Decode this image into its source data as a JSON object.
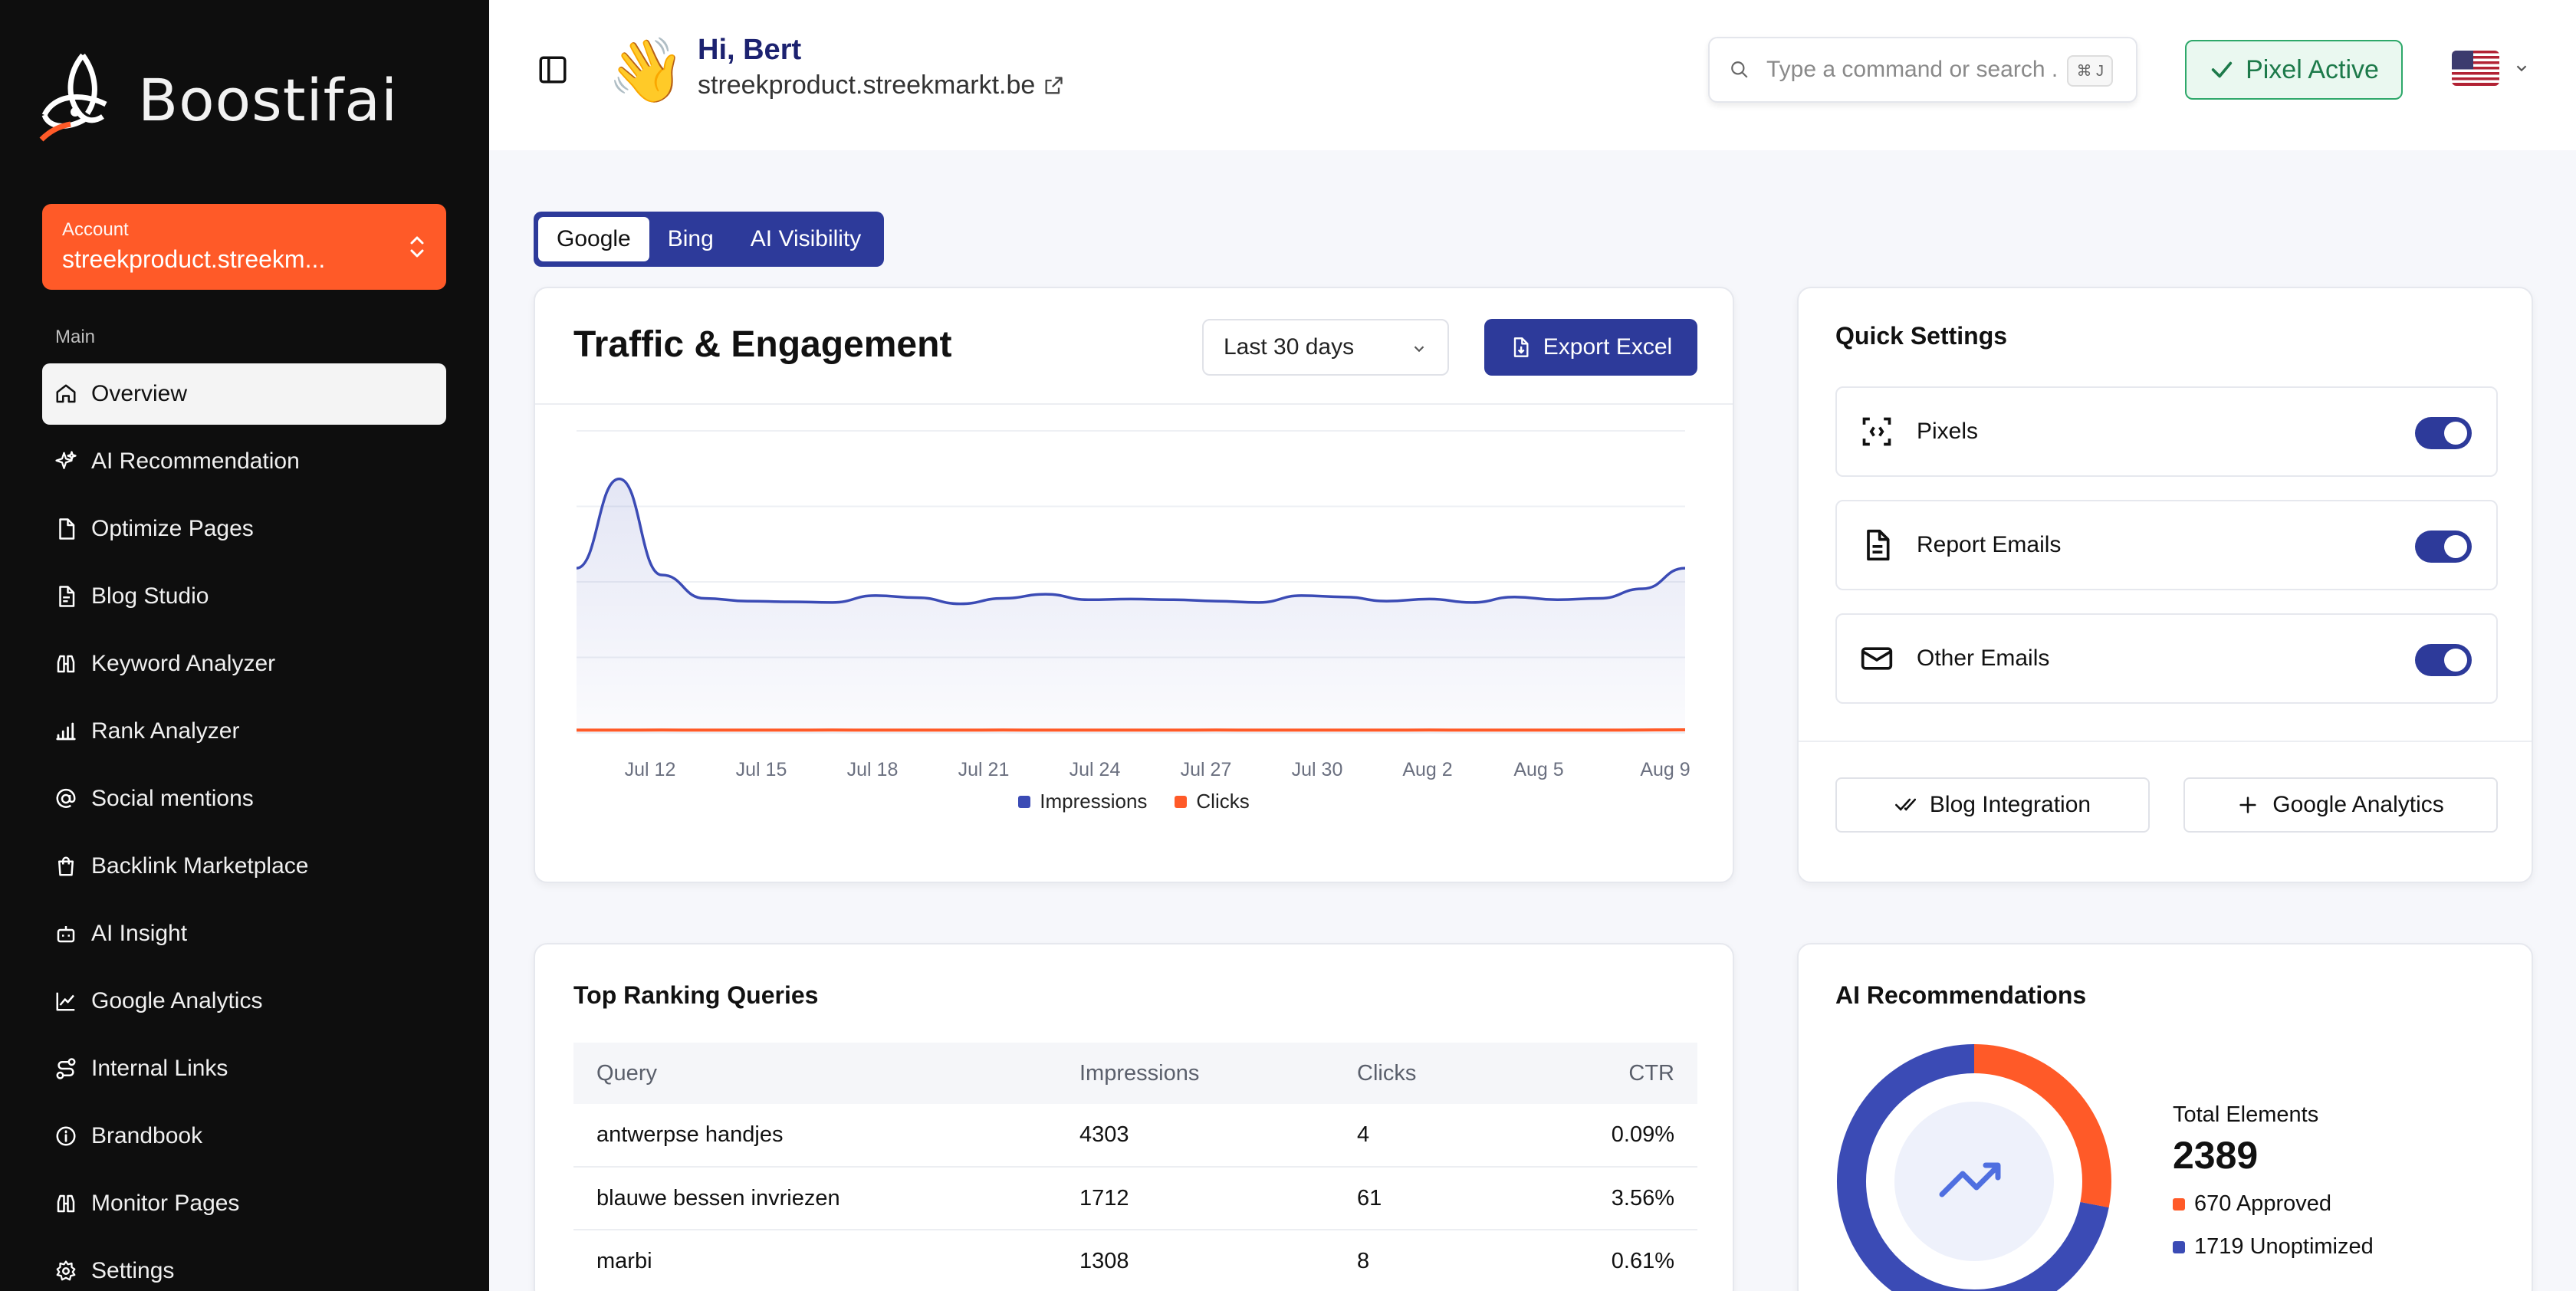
{
  "brand": {
    "name": "Boostifai"
  },
  "account": {
    "label": "Account",
    "value": "streekproduct.streekm..."
  },
  "sidebar": {
    "section": "Main",
    "items": [
      {
        "label": "Overview",
        "icon": "home-icon"
      },
      {
        "label": "AI Recommendation",
        "icon": "sparkles-icon"
      },
      {
        "label": "Optimize Pages",
        "icon": "file-icon"
      },
      {
        "label": "Blog Studio",
        "icon": "file-text-icon"
      },
      {
        "label": "Keyword Analyzer",
        "icon": "binoculars-icon"
      },
      {
        "label": "Rank Analyzer",
        "icon": "bar-chart-icon"
      },
      {
        "label": "Social mentions",
        "icon": "at-sign-icon"
      },
      {
        "label": "Backlink Marketplace",
        "icon": "shopping-bag-icon"
      },
      {
        "label": "AI Insight",
        "icon": "bot-icon"
      },
      {
        "label": "Google Analytics",
        "icon": "line-chart-icon"
      },
      {
        "label": "Internal Links",
        "icon": "route-icon"
      },
      {
        "label": "Brandbook",
        "icon": "info-icon"
      },
      {
        "label": "Monitor Pages",
        "icon": "binoculars-icon"
      },
      {
        "label": "Settings",
        "icon": "gear-icon"
      }
    ]
  },
  "header": {
    "greeting": "Hi, Bert",
    "site": "streekproduct.streekmarkt.be",
    "search_placeholder": "Type a command or search ...",
    "search_shortcut": "⌘ J",
    "pixel_status": "Pixel Active",
    "language": "en-US"
  },
  "tabs": [
    "Google",
    "Bing",
    "AI Visibility"
  ],
  "traffic": {
    "title": "Traffic & Engagement",
    "range": "Last 30 days",
    "export_label": "Export Excel"
  },
  "chart_data": {
    "type": "line",
    "x_ticks": [
      "Jul 12",
      "Jul 15",
      "Jul 18",
      "Jul 21",
      "Jul 24",
      "Jul 27",
      "Jul 30",
      "Aug 2",
      "Aug 5",
      "Aug 9"
    ],
    "series": [
      {
        "name": "Impressions",
        "color": "#3b4bb5",
        "values": [
          1200,
          1850,
          1150,
          980,
          960,
          955,
          950,
          1000,
          985,
          940,
          980,
          1010,
          970,
          975,
          970,
          960,
          950,
          1000,
          990,
          960,
          975,
          950,
          990,
          970,
          980,
          1050,
          1200
        ]
      },
      {
        "name": "Clicks",
        "color": "#ff5a28",
        "values": [
          20,
          20,
          21,
          20,
          20,
          20,
          21,
          20,
          20,
          20,
          21,
          20,
          20,
          20,
          20,
          21,
          20,
          20,
          20,
          20,
          21,
          20,
          20,
          20,
          20,
          21,
          22
        ]
      }
    ],
    "ylim": [
      0,
      2200
    ],
    "grid": true,
    "legend": "bottom"
  },
  "quick_settings": {
    "title": "Quick Settings",
    "rows": [
      {
        "label": "Pixels",
        "icon": "pixel-code-icon",
        "on": true
      },
      {
        "label": "Report Emails",
        "icon": "document-icon",
        "on": true
      },
      {
        "label": "Other Emails",
        "icon": "mail-icon",
        "on": true
      }
    ],
    "buttons": [
      {
        "label": "Blog Integration",
        "icon": "check-check-icon"
      },
      {
        "label": "Google Analytics",
        "icon": "plus-icon"
      }
    ]
  },
  "queries": {
    "title": "Top Ranking Queries",
    "columns": [
      "Query",
      "Impressions",
      "Clicks",
      "CTR"
    ],
    "rows": [
      [
        "antwerpse handjes",
        "4303",
        "4",
        "0.09%"
      ],
      [
        "blauwe bessen invriezen",
        "1712",
        "61",
        "3.56%"
      ],
      [
        "marbi",
        "1308",
        "8",
        "0.61%"
      ]
    ]
  },
  "ai_recommendations": {
    "title": "AI Recommendations",
    "total_label": "Total Elements",
    "total": "2389",
    "approved": 670,
    "unoptimized": 1719,
    "approved_label": "670 Approved",
    "unoptimized_label": "1719 Unoptimized",
    "approved_color": "#ff5a28",
    "unoptimized_color": "#3b4bb5"
  }
}
